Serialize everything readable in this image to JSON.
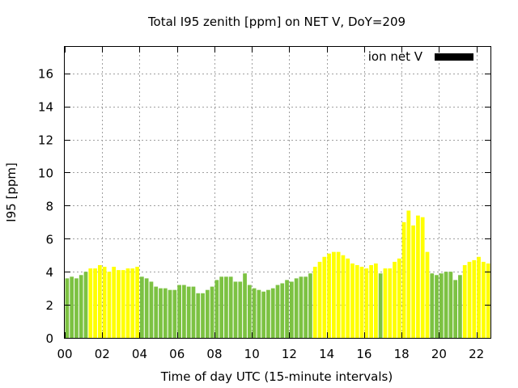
{
  "chart_data": {
    "type": "bar",
    "title": "Total I95 zenith [ppm] on NET V, DoY=209",
    "xlabel": "Time of day UTC (15-minute intervals)",
    "ylabel": "I95 [ppm]",
    "legend": {
      "label": "ion net V",
      "color": "#000000",
      "position": "top-right"
    },
    "xlim": [
      0,
      22.75
    ],
    "ylim": [
      0,
      17.6
    ],
    "grid": true,
    "x_ticks": [
      "00",
      "02",
      "04",
      "06",
      "08",
      "10",
      "12",
      "14",
      "16",
      "18",
      "20",
      "22"
    ],
    "y_ticks": [
      "0",
      "2",
      "4",
      "6",
      "8",
      "10",
      "12",
      "14",
      "16"
    ],
    "colors": {
      "green": "#7cc242",
      "yellow": "#ffff00"
    },
    "interval_hours": 0.25,
    "values": [
      3.6,
      3.7,
      3.6,
      3.8,
      4.0,
      4.2,
      4.2,
      4.4,
      4.3,
      4.0,
      4.3,
      4.1,
      4.1,
      4.2,
      4.2,
      4.3,
      3.7,
      3.6,
      3.4,
      3.1,
      3.0,
      3.0,
      2.9,
      2.9,
      3.2,
      3.2,
      3.1,
      3.1,
      2.7,
      2.7,
      2.9,
      3.1,
      3.5,
      3.7,
      3.7,
      3.7,
      3.4,
      3.4,
      3.9,
      3.2,
      3.0,
      2.9,
      2.8,
      2.9,
      3.0,
      3.2,
      3.3,
      3.5,
      3.4,
      3.6,
      3.7,
      3.7,
      3.9,
      4.3,
      4.6,
      4.9,
      5.1,
      5.2,
      5.2,
      5.0,
      4.8,
      4.5,
      4.4,
      4.3,
      4.2,
      4.4,
      4.5,
      3.9,
      4.2,
      4.2,
      4.6,
      4.8,
      7.0,
      7.7,
      6.8,
      7.4,
      7.3,
      5.2,
      3.9,
      3.8,
      3.9,
      4.0,
      4.0,
      3.5,
      3.8,
      4.4,
      4.6,
      4.7,
      4.9,
      4.6,
      4.5
    ],
    "bar_colors": [
      "green",
      "green",
      "green",
      "green",
      "green",
      "yellow",
      "yellow",
      "yellow",
      "yellow",
      "yellow",
      "yellow",
      "yellow",
      "yellow",
      "yellow",
      "yellow",
      "yellow",
      "green",
      "green",
      "green",
      "green",
      "green",
      "green",
      "green",
      "green",
      "green",
      "green",
      "green",
      "green",
      "green",
      "green",
      "green",
      "green",
      "green",
      "green",
      "green",
      "green",
      "green",
      "green",
      "green",
      "green",
      "green",
      "green",
      "green",
      "green",
      "green",
      "green",
      "green",
      "green",
      "green",
      "green",
      "green",
      "green",
      "green",
      "yellow",
      "yellow",
      "yellow",
      "yellow",
      "yellow",
      "yellow",
      "yellow",
      "yellow",
      "yellow",
      "yellow",
      "yellow",
      "yellow",
      "yellow",
      "yellow",
      "green",
      "yellow",
      "yellow",
      "yellow",
      "yellow",
      "yellow",
      "yellow",
      "yellow",
      "yellow",
      "yellow",
      "yellow",
      "green",
      "green",
      "green",
      "green",
      "green",
      "green",
      "green",
      "yellow",
      "yellow",
      "yellow",
      "yellow",
      "yellow",
      "yellow"
    ]
  }
}
